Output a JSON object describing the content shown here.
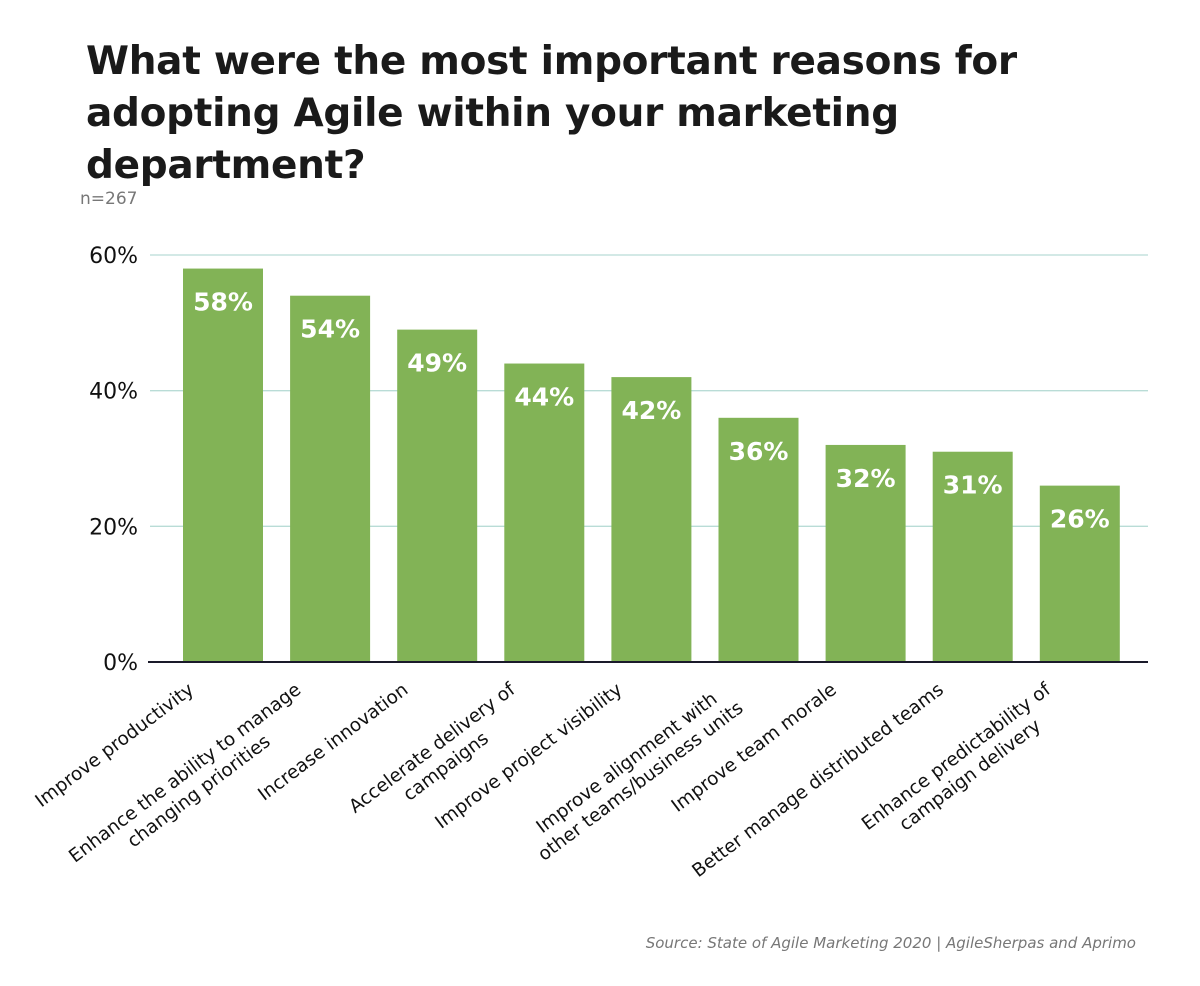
{
  "chart_data": {
    "type": "bar",
    "title": "What were the most important reasons for adopting Agile within your marketing department?",
    "subtitle": "n=267",
    "source": "Source: State of Agile Marketing 2020 | AgileSherpas and Aprimo",
    "categories": [
      [
        "Improve productivity"
      ],
      [
        "Enhance the ability to manage",
        "changing priorities"
      ],
      [
        "Increase innovation"
      ],
      [
        "Accelerate delivery of",
        "campaigns"
      ],
      [
        "Improve project visibility"
      ],
      [
        "Improve alignment with",
        "other teams/business units"
      ],
      [
        "Improve team morale"
      ],
      [
        "Better manage distributed teams"
      ],
      [
        "Enhance predictability of",
        "campaign delivery"
      ]
    ],
    "values": [
      58,
      54,
      49,
      44,
      42,
      36,
      32,
      31,
      26
    ],
    "data_labels": [
      "58%",
      "54%",
      "49%",
      "44%",
      "42%",
      "36%",
      "32%",
      "31%",
      "26%"
    ],
    "ylim": [
      0,
      60
    ],
    "yticks": [
      0,
      20,
      40,
      60
    ],
    "ytick_labels": [
      "0%",
      "20%",
      "40%",
      "60%"
    ],
    "grid": true,
    "legend": "none",
    "colors": {
      "bar": "#82b356",
      "grid": "#b9dcd6",
      "axis": "#1a1a2a"
    }
  }
}
